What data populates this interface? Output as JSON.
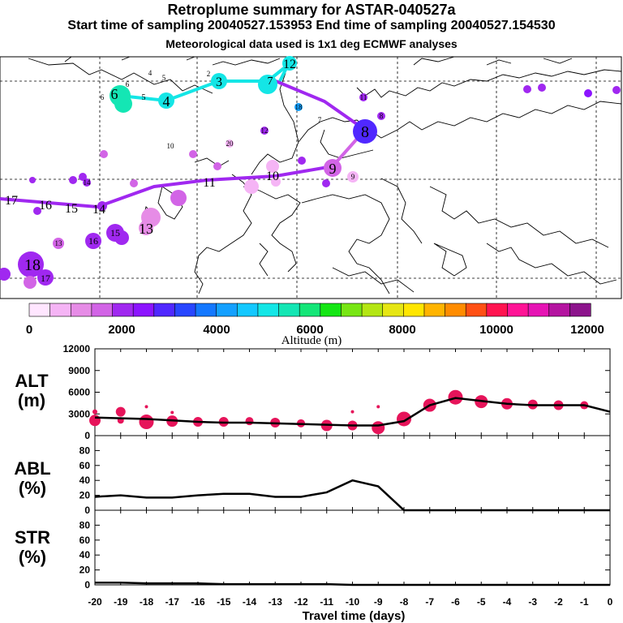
{
  "header": {
    "title": "Retroplume summary for ASTAR-040527a",
    "sampling": "Start time of sampling 20040527.153953     End time of sampling 20040527.154530",
    "meteo": "Meteorological data used is 1x1 deg ECMWF analyses"
  },
  "colors": {
    "palette": [
      "#ffe6ff",
      "#f5b4f5",
      "#e68ce6",
      "#d264e6",
      "#a028f0",
      "#8c14ff",
      "#5028ff",
      "#2846ff",
      "#1478ff",
      "#14a0ff",
      "#14c8ff",
      "#14e6e6",
      "#14e6b4",
      "#14e678",
      "#14e614",
      "#78e614",
      "#b4e614",
      "#e6e614",
      "#ffe600",
      "#ffb400",
      "#ff8c00",
      "#ff5014",
      "#ff1450",
      "#ff1496",
      "#e614b4",
      "#b414a0",
      "#8c148c"
    ],
    "scatter": "#e6145a",
    "line": "#000000"
  },
  "colorbar": {
    "tick_labels": [
      "0",
      "2000",
      "4000",
      "6000",
      "8000",
      "10000",
      "12000"
    ],
    "label": "Altitude (m)"
  },
  "map_labels": [
    "12",
    "3",
    "4",
    "5",
    "6",
    "7",
    "8",
    "9",
    "10",
    "11",
    "13",
    "14",
    "15",
    "16",
    "17",
    "18",
    "20",
    "2",
    "4",
    "5",
    "6",
    "6",
    "7",
    "8",
    "9",
    "10",
    "11",
    "12",
    "13",
    "14",
    "15",
    "16",
    "17",
    "18"
  ],
  "panels": {
    "alt": {
      "label_top": "ALT",
      "label_bottom": "(m)"
    },
    "abl": {
      "label_top": "ABL",
      "label_bottom": "(%)"
    },
    "str": {
      "label_top": "STR",
      "label_bottom": "(%)"
    },
    "xlabel": "Travel time (days)"
  },
  "chart_data": [
    {
      "type": "line",
      "title": "ALT (m)",
      "ylim": [
        0,
        12000
      ],
      "yticks": [
        "0",
        "3000",
        "6000",
        "9000",
        "12000"
      ],
      "x": [
        -20,
        -19,
        -18,
        -17,
        -16,
        -15,
        -14,
        -13,
        -12,
        -11,
        -10,
        -9,
        -8,
        -7,
        -6,
        -5,
        -4,
        -3,
        -2,
        -1,
        0
      ],
      "y": [
        2500,
        2400,
        2300,
        2100,
        1900,
        1800,
        1800,
        1700,
        1600,
        1500,
        1400,
        1400,
        2000,
        4200,
        5200,
        4800,
        4400,
        4200,
        4200,
        4200,
        3300
      ],
      "scatter": [
        {
          "x": -20,
          "y": 2100,
          "s": 7
        },
        {
          "x": -20,
          "y": 3300,
          "s": 3
        },
        {
          "x": -19,
          "y": 3300,
          "s": 6
        },
        {
          "x": -19,
          "y": 2100,
          "s": 4
        },
        {
          "x": -18,
          "y": 1900,
          "s": 9
        },
        {
          "x": -18,
          "y": 4000,
          "s": 2
        },
        {
          "x": -17,
          "y": 2000,
          "s": 7
        },
        {
          "x": -17,
          "y": 3200,
          "s": 2
        },
        {
          "x": -16,
          "y": 1900,
          "s": 6
        },
        {
          "x": -15,
          "y": 1900,
          "s": 6
        },
        {
          "x": -14,
          "y": 2000,
          "s": 5
        },
        {
          "x": -13,
          "y": 1800,
          "s": 6
        },
        {
          "x": -12,
          "y": 1700,
          "s": 5
        },
        {
          "x": -11,
          "y": 1400,
          "s": 7
        },
        {
          "x": -10,
          "y": 1400,
          "s": 6
        },
        {
          "x": -10,
          "y": 3300,
          "s": 2
        },
        {
          "x": -9,
          "y": 1100,
          "s": 8
        },
        {
          "x": -9,
          "y": 4000,
          "s": 2
        },
        {
          "x": -8,
          "y": 2300,
          "s": 9
        },
        {
          "x": -7,
          "y": 4200,
          "s": 8
        },
        {
          "x": -6,
          "y": 5300,
          "s": 9
        },
        {
          "x": -5,
          "y": 4700,
          "s": 8
        },
        {
          "x": -4,
          "y": 4400,
          "s": 7
        },
        {
          "x": -3,
          "y": 4300,
          "s": 6
        },
        {
          "x": -2,
          "y": 4200,
          "s": 6
        },
        {
          "x": -1,
          "y": 4200,
          "s": 5
        }
      ]
    },
    {
      "type": "line",
      "title": "ABL (%)",
      "ylim": [
        0,
        100
      ],
      "yticks": [
        "0",
        "20",
        "40",
        "60",
        "80"
      ],
      "x": [
        -20,
        -19,
        -18,
        -17,
        -16,
        -15,
        -14,
        -13,
        -12,
        -11,
        -10,
        -9,
        -8,
        -7,
        -6,
        -5,
        -4,
        -3,
        -2,
        -1,
        0
      ],
      "y": [
        18,
        20,
        17,
        17,
        20,
        22,
        22,
        18,
        18,
        24,
        40,
        32,
        0,
        0,
        0,
        0,
        0,
        0,
        0,
        0,
        0
      ]
    },
    {
      "type": "line",
      "title": "STR (%)",
      "ylim": [
        0,
        100
      ],
      "yticks": [
        "0",
        "20",
        "40",
        "60",
        "80"
      ],
      "x": [
        -20,
        -19,
        -18,
        -17,
        -16,
        -15,
        -14,
        -13,
        -12,
        -11,
        -10,
        -9,
        -8,
        -7,
        -6,
        -5,
        -4,
        -3,
        -2,
        -1,
        0
      ],
      "y": [
        3,
        3,
        2,
        2,
        2,
        1,
        1,
        1,
        1,
        1,
        0,
        0,
        0,
        0,
        0,
        0,
        0,
        0,
        0,
        0,
        0
      ],
      "xticks": [
        "-20",
        "-19",
        "-18",
        "-17",
        "-16",
        "-15",
        "-14",
        "-13",
        "-12",
        "-11",
        "-10",
        "-9",
        "-8",
        "-7",
        "-6",
        "-5",
        "-4",
        "-3",
        "-2",
        "-1",
        "0"
      ]
    }
  ]
}
